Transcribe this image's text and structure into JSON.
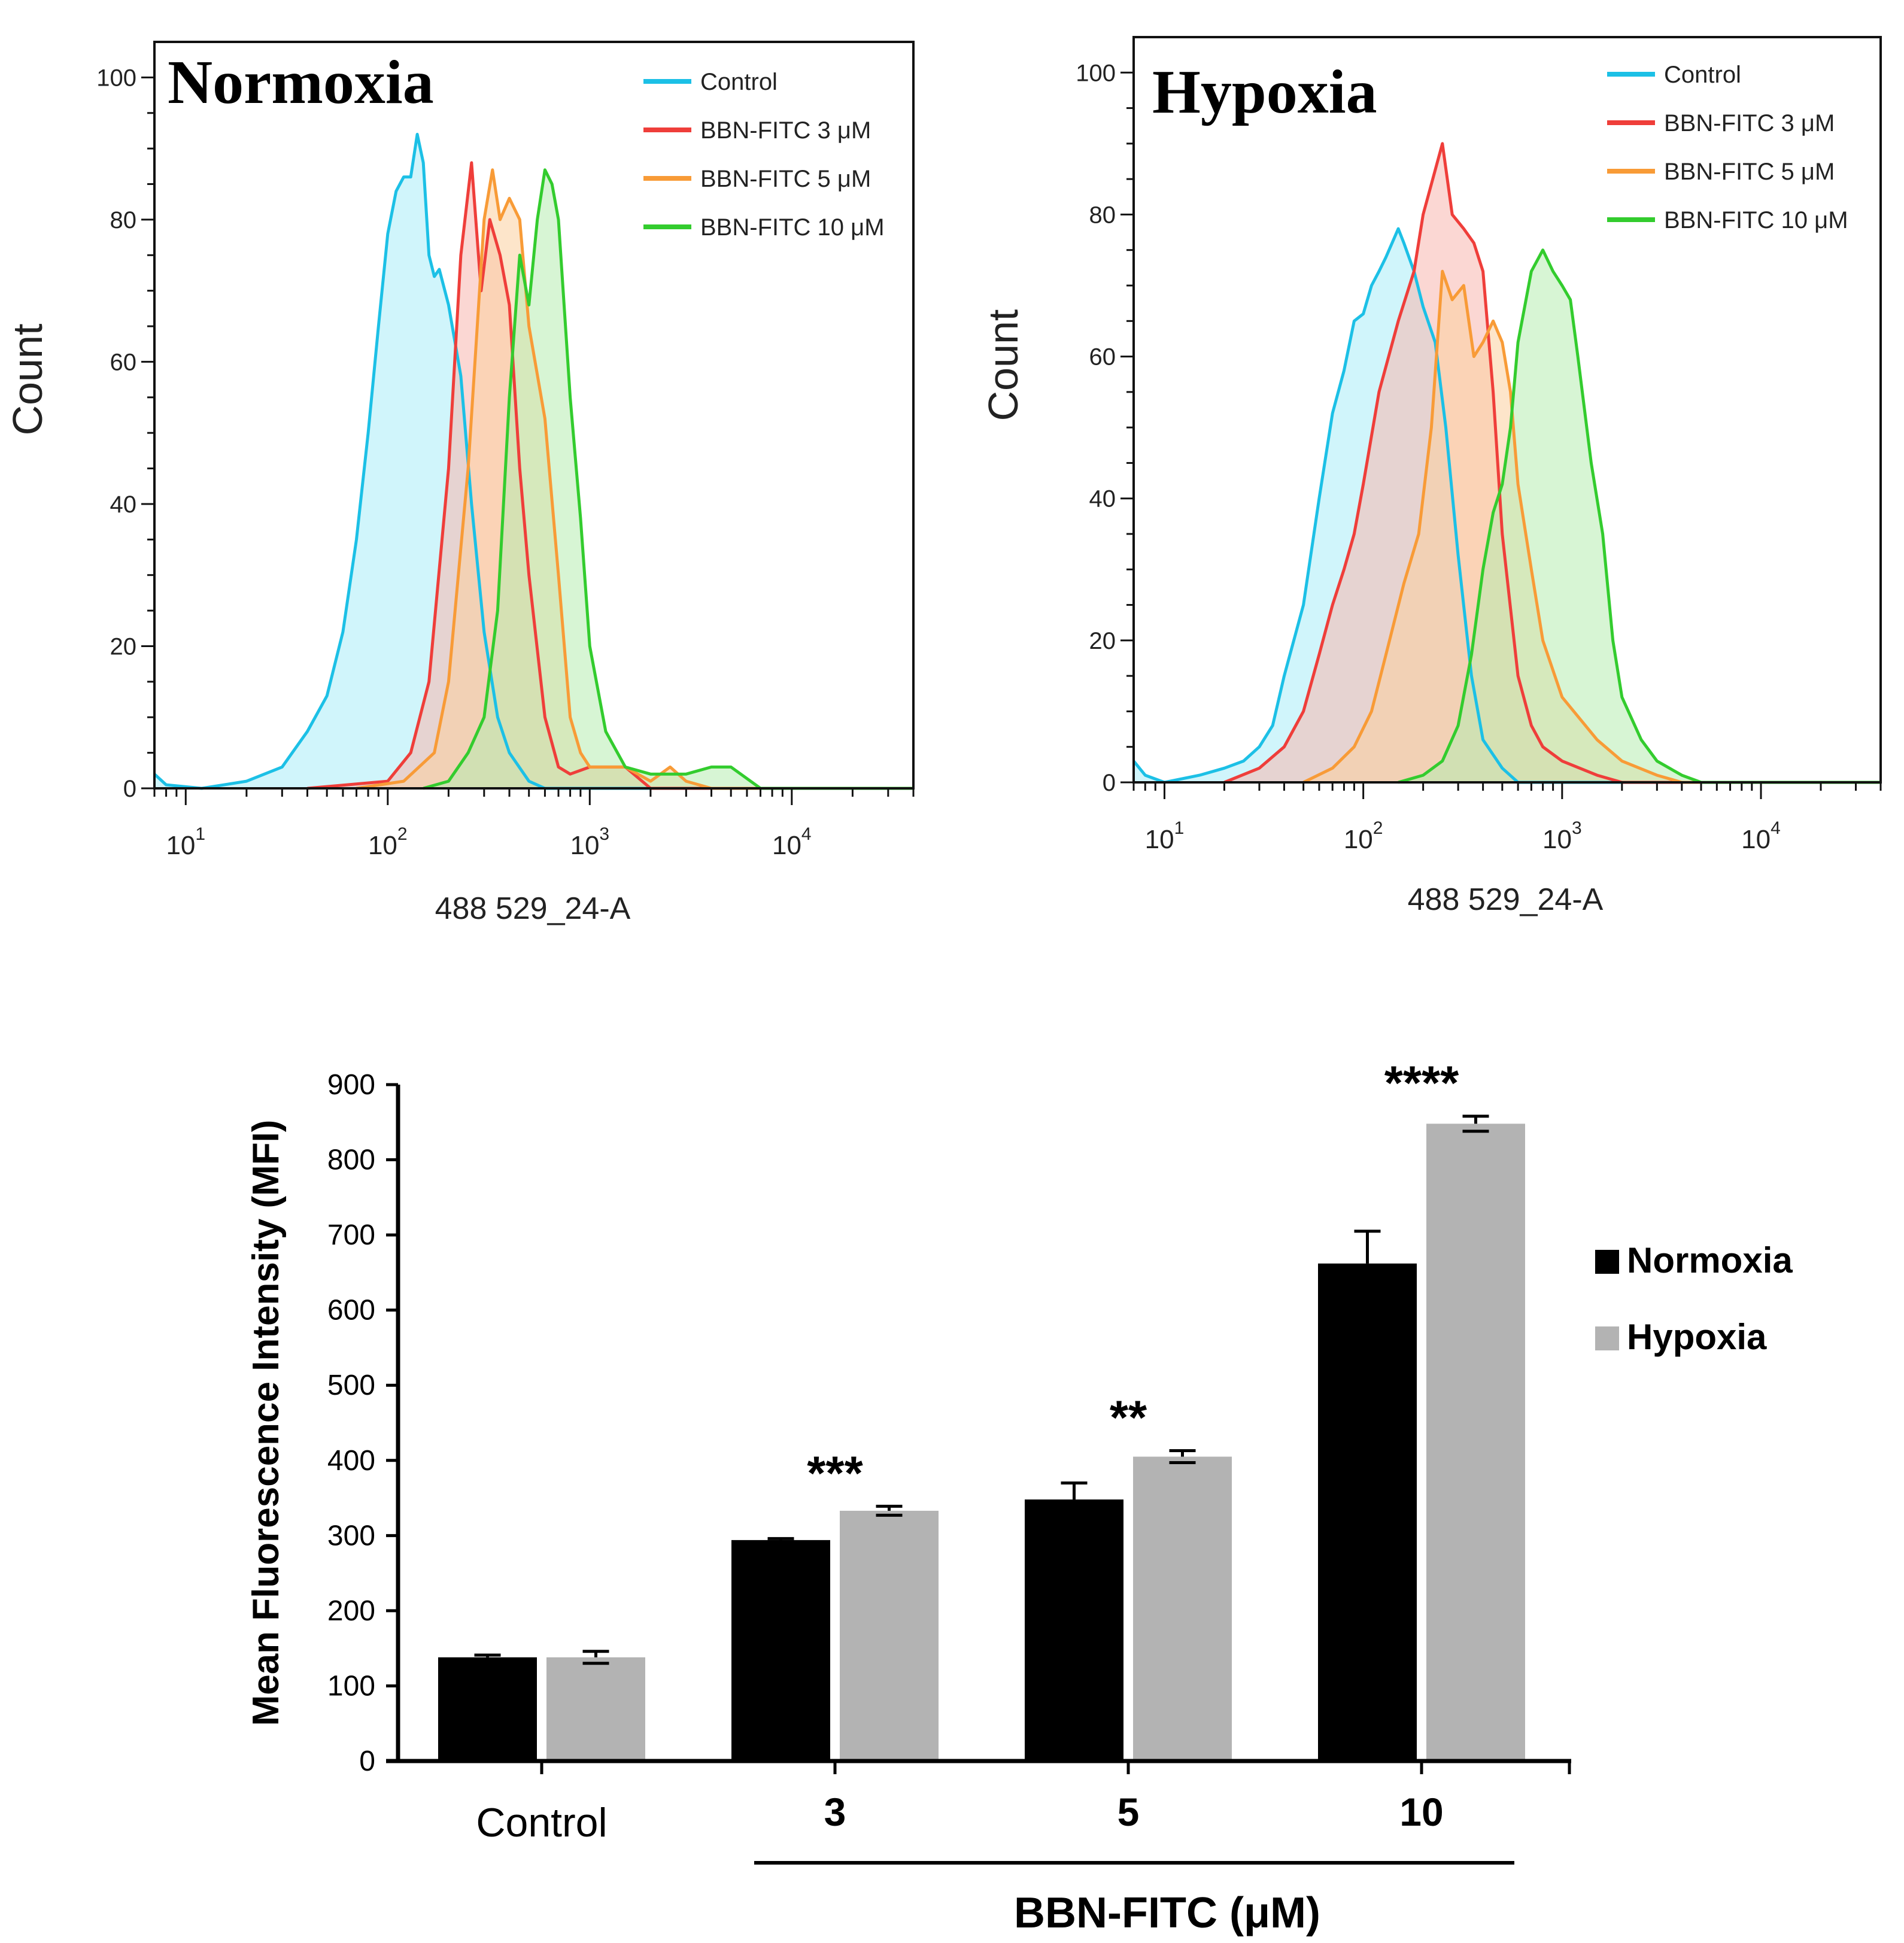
{
  "chart_data": [
    {
      "type": "area",
      "panel_title": "Normoxia",
      "xlabel": "488 529_24-A",
      "ylabel": "Count",
      "xscale": "log",
      "xlim": [
        7,
        40000
      ],
      "ylim": [
        0,
        105
      ],
      "yticks": [
        0,
        20,
        40,
        60,
        80,
        100
      ],
      "xticks": [
        {
          "base": "10",
          "exp": "1",
          "value": 10
        },
        {
          "base": "10",
          "exp": "2",
          "value": 100
        },
        {
          "base": "10",
          "exp": "3",
          "value": 1000
        },
        {
          "base": "10",
          "exp": "4",
          "value": 10000
        }
      ],
      "legend_position": "top-right",
      "series": [
        {
          "name": "Control",
          "color": "#1cc0e6",
          "fill": "#a9ecf7",
          "points": [
            [
              7,
              2
            ],
            [
              8,
              0.5
            ],
            [
              12,
              0
            ],
            [
              20,
              1
            ],
            [
              30,
              3
            ],
            [
              40,
              8
            ],
            [
              50,
              13
            ],
            [
              60,
              22
            ],
            [
              70,
              35
            ],
            [
              80,
              50
            ],
            [
              90,
              65
            ],
            [
              100,
              78
            ],
            [
              110,
              84
            ],
            [
              120,
              86
            ],
            [
              130,
              86
            ],
            [
              140,
              92
            ],
            [
              150,
              88
            ],
            [
              160,
              75
            ],
            [
              170,
              72
            ],
            [
              180,
              73
            ],
            [
              200,
              68
            ],
            [
              230,
              58
            ],
            [
              260,
              40
            ],
            [
              300,
              22
            ],
            [
              350,
              10
            ],
            [
              400,
              5
            ],
            [
              500,
              1
            ],
            [
              600,
              0
            ],
            [
              40000,
              0
            ]
          ]
        },
        {
          "name": "BBN-FITC 3 μM",
          "color": "#ef3e3a",
          "fill": "#f8b7ae",
          "points": [
            [
              40,
              0
            ],
            [
              100,
              1
            ],
            [
              130,
              5
            ],
            [
              160,
              15
            ],
            [
              200,
              45
            ],
            [
              230,
              75
            ],
            [
              260,
              88
            ],
            [
              290,
              70
            ],
            [
              320,
              80
            ],
            [
              360,
              75
            ],
            [
              400,
              68
            ],
            [
              450,
              45
            ],
            [
              500,
              30
            ],
            [
              600,
              10
            ],
            [
              700,
              3
            ],
            [
              800,
              2
            ],
            [
              1000,
              3
            ],
            [
              1500,
              3
            ],
            [
              2000,
              0
            ],
            [
              40000,
              0
            ]
          ]
        },
        {
          "name": "BBN-FITC 5 μM",
          "color": "#f89b37",
          "fill": "#fbcf9e",
          "points": [
            [
              70,
              0
            ],
            [
              120,
              1
            ],
            [
              170,
              5
            ],
            [
              200,
              15
            ],
            [
              250,
              45
            ],
            [
              300,
              80
            ],
            [
              330,
              87
            ],
            [
              360,
              80
            ],
            [
              400,
              83
            ],
            [
              450,
              80
            ],
            [
              500,
              65
            ],
            [
              600,
              52
            ],
            [
              700,
              30
            ],
            [
              800,
              10
            ],
            [
              900,
              5
            ],
            [
              1000,
              3
            ],
            [
              1500,
              3
            ],
            [
              2000,
              1
            ],
            [
              2500,
              3
            ],
            [
              3000,
              1
            ],
            [
              4000,
              0
            ],
            [
              40000,
              0
            ]
          ]
        },
        {
          "name": "BBN-FITC 10 μM",
          "color": "#33cc2e",
          "fill": "#b6ecb1",
          "points": [
            [
              150,
              0
            ],
            [
              200,
              1
            ],
            [
              250,
              5
            ],
            [
              300,
              10
            ],
            [
              350,
              25
            ],
            [
              400,
              55
            ],
            [
              450,
              75
            ],
            [
              500,
              68
            ],
            [
              550,
              80
            ],
            [
              600,
              87
            ],
            [
              650,
              85
            ],
            [
              700,
              80
            ],
            [
              800,
              55
            ],
            [
              900,
              38
            ],
            [
              1000,
              20
            ],
            [
              1200,
              8
            ],
            [
              1500,
              3
            ],
            [
              2000,
              2
            ],
            [
              3000,
              2
            ],
            [
              4000,
              3
            ],
            [
              5000,
              3
            ],
            [
              7000,
              0
            ],
            [
              40000,
              0
            ]
          ]
        }
      ]
    },
    {
      "type": "area",
      "panel_title": "Hypoxia",
      "xlabel": "488 529_24-A",
      "ylabel": "Count",
      "xscale": "log",
      "xlim": [
        7,
        40000
      ],
      "ylim": [
        0,
        105
      ],
      "yticks": [
        0,
        20,
        40,
        60,
        80,
        100
      ],
      "xticks": [
        {
          "base": "10",
          "exp": "1",
          "value": 10
        },
        {
          "base": "10",
          "exp": "2",
          "value": 100
        },
        {
          "base": "10",
          "exp": "3",
          "value": 1000
        },
        {
          "base": "10",
          "exp": "4",
          "value": 10000
        }
      ],
      "legend_position": "top-right",
      "series": [
        {
          "name": "Control",
          "color": "#1cc0e6",
          "fill": "#a9ecf7",
          "points": [
            [
              7,
              3
            ],
            [
              8,
              1
            ],
            [
              10,
              0
            ],
            [
              15,
              1
            ],
            [
              20,
              2
            ],
            [
              25,
              3
            ],
            [
              30,
              5
            ],
            [
              35,
              8
            ],
            [
              40,
              15
            ],
            [
              50,
              25
            ],
            [
              60,
              40
            ],
            [
              70,
              52
            ],
            [
              80,
              58
            ],
            [
              90,
              65
            ],
            [
              100,
              66
            ],
            [
              110,
              70
            ],
            [
              120,
              72
            ],
            [
              130,
              74
            ],
            [
              150,
              78
            ],
            [
              160,
              76
            ],
            [
              180,
              72
            ],
            [
              200,
              67
            ],
            [
              230,
              62
            ],
            [
              260,
              50
            ],
            [
              300,
              32
            ],
            [
              350,
              15
            ],
            [
              400,
              6
            ],
            [
              500,
              2
            ],
            [
              600,
              0
            ],
            [
              40000,
              0
            ]
          ]
        },
        {
          "name": "BBN-FITC 3 μM",
          "color": "#ef3e3a",
          "fill": "#f8b7ae",
          "points": [
            [
              20,
              0
            ],
            [
              30,
              2
            ],
            [
              40,
              5
            ],
            [
              50,
              10
            ],
            [
              60,
              18
            ],
            [
              70,
              25
            ],
            [
              80,
              30
            ],
            [
              90,
              35
            ],
            [
              100,
              42
            ],
            [
              120,
              55
            ],
            [
              150,
              65
            ],
            [
              180,
              72
            ],
            [
              200,
              80
            ],
            [
              250,
              90
            ],
            [
              280,
              80
            ],
            [
              320,
              78
            ],
            [
              360,
              76
            ],
            [
              400,
              72
            ],
            [
              450,
              55
            ],
            [
              500,
              35
            ],
            [
              600,
              15
            ],
            [
              700,
              8
            ],
            [
              800,
              5
            ],
            [
              1000,
              3
            ],
            [
              1500,
              1
            ],
            [
              2000,
              0
            ],
            [
              40000,
              0
            ]
          ]
        },
        {
          "name": "BBN-FITC 5 μM",
          "color": "#f89b37",
          "fill": "#fbcf9e",
          "points": [
            [
              50,
              0
            ],
            [
              70,
              2
            ],
            [
              90,
              5
            ],
            [
              110,
              10
            ],
            [
              130,
              18
            ],
            [
              160,
              28
            ],
            [
              190,
              35
            ],
            [
              220,
              50
            ],
            [
              250,
              72
            ],
            [
              280,
              68
            ],
            [
              320,
              70
            ],
            [
              360,
              60
            ],
            [
              400,
              62
            ],
            [
              450,
              65
            ],
            [
              500,
              62
            ],
            [
              550,
              55
            ],
            [
              600,
              42
            ],
            [
              700,
              30
            ],
            [
              800,
              20
            ],
            [
              1000,
              12
            ],
            [
              1500,
              6
            ],
            [
              2000,
              3
            ],
            [
              3000,
              1
            ],
            [
              4000,
              0
            ],
            [
              40000,
              0
            ]
          ]
        },
        {
          "name": "BBN-FITC 10 μM",
          "color": "#33cc2e",
          "fill": "#b6ecb1",
          "points": [
            [
              150,
              0
            ],
            [
              200,
              1
            ],
            [
              250,
              3
            ],
            [
              300,
              8
            ],
            [
              350,
              18
            ],
            [
              400,
              30
            ],
            [
              450,
              38
            ],
            [
              500,
              42
            ],
            [
              550,
              50
            ],
            [
              600,
              62
            ],
            [
              700,
              72
            ],
            [
              800,
              75
            ],
            [
              900,
              72
            ],
            [
              1000,
              70
            ],
            [
              1100,
              68
            ],
            [
              1200,
              60
            ],
            [
              1400,
              45
            ],
            [
              1600,
              35
            ],
            [
              1800,
              20
            ],
            [
              2000,
              12
            ],
            [
              2500,
              6
            ],
            [
              3000,
              3
            ],
            [
              4000,
              1
            ],
            [
              5000,
              0
            ],
            [
              40000,
              0
            ]
          ]
        }
      ]
    },
    {
      "type": "bar",
      "xlabel": "BBN-FITC (μM)",
      "ylabel": "Mean Fluorescence Intensity (MFI)",
      "categories": [
        "Control",
        "3",
        "5",
        "10"
      ],
      "ylim": [
        0,
        900
      ],
      "yticks": [
        0,
        100,
        200,
        300,
        400,
        500,
        600,
        700,
        800,
        900
      ],
      "legend_position": "right",
      "series": [
        {
          "name": "Normoxia",
          "color": "#000000",
          "values": [
            138,
            294,
            348,
            662
          ],
          "errors": [
            3,
            2,
            22,
            43
          ]
        },
        {
          "name": "Hypoxia",
          "color": "#b3b3b3",
          "values": [
            138,
            333,
            405,
            848
          ],
          "errors": [
            8,
            6,
            8,
            10
          ]
        }
      ],
      "significance": [
        "",
        "***",
        "**",
        "****"
      ]
    }
  ]
}
